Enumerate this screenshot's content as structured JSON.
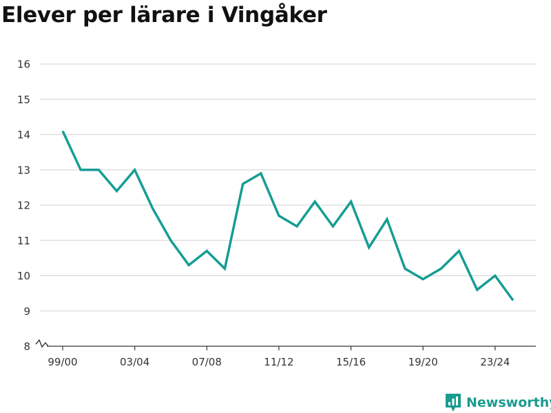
{
  "chart_data": {
    "type": "line",
    "title": "Elever per lärare i Vingåker",
    "xlabel": "",
    "ylabel": "",
    "ylim": [
      8,
      16
    ],
    "y_ticks": [
      "8",
      "9",
      "10",
      "11",
      "12",
      "13",
      "14",
      "15",
      "16"
    ],
    "x_tick_labels": [
      "99/00",
      "03/04",
      "07/08",
      "11/12",
      "15/16",
      "19/20",
      "23/24"
    ],
    "grid": true,
    "axis_break": true,
    "categories": [
      "99/00",
      "00/01",
      "01/02",
      "02/03",
      "03/04",
      "04/05",
      "05/06",
      "06/07",
      "07/08",
      "08/09",
      "09/10",
      "10/11",
      "11/12",
      "12/13",
      "13/14",
      "14/15",
      "15/16",
      "16/17",
      "17/18",
      "18/19",
      "19/20",
      "20/21",
      "21/22",
      "22/23",
      "23/24",
      "24/25"
    ],
    "series": [
      {
        "values": [
          14.1,
          13.0,
          13.0,
          12.4,
          13.0,
          11.9,
          11.0,
          10.3,
          10.7,
          10.2,
          12.6,
          12.9,
          11.7,
          11.4,
          12.1,
          11.4,
          12.1,
          10.8,
          11.6,
          10.2,
          9.9,
          10.2,
          10.7,
          9.6,
          10.0,
          9.3
        ]
      }
    ],
    "line_color": "#159d94"
  },
  "brand": {
    "name": "Newsworthy",
    "color": "#1a9b8f"
  }
}
